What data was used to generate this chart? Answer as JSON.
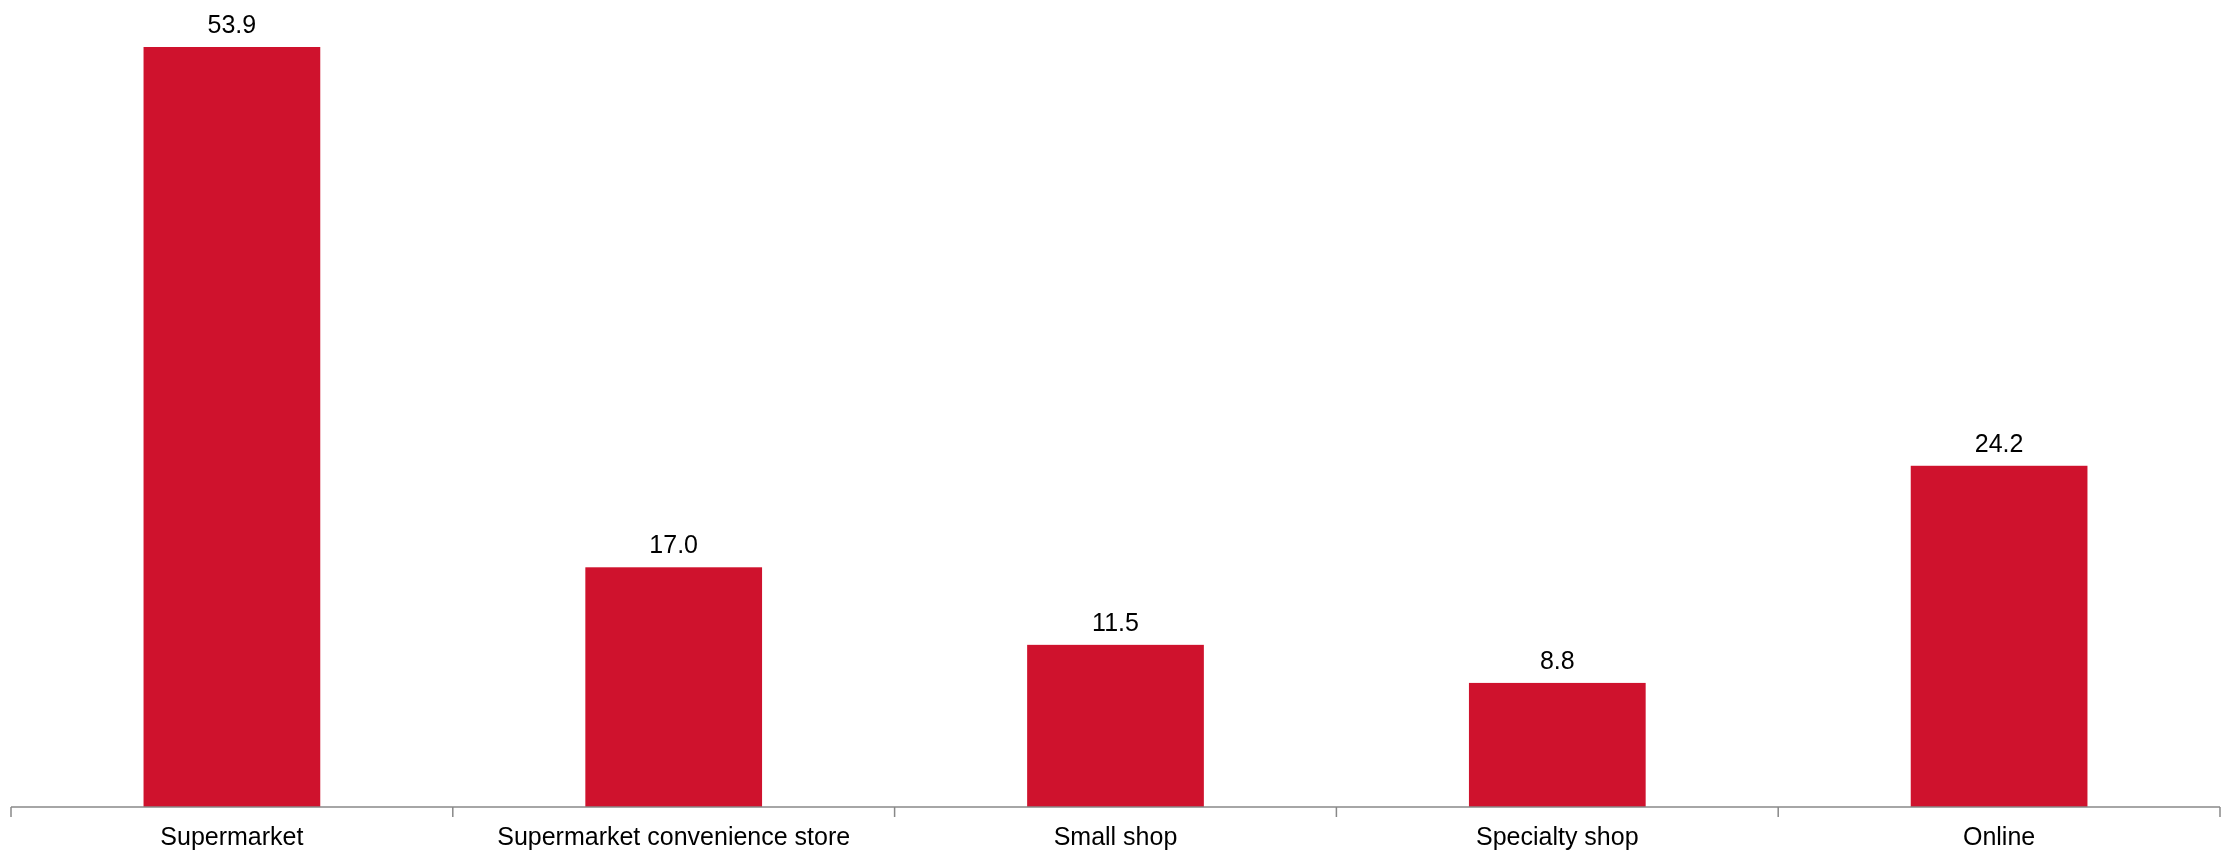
{
  "chart_data": {
    "type": "bar",
    "categories": [
      "Supermarket",
      "Supermarket convenience store",
      "Small shop",
      "Specialty shop",
      "Online"
    ],
    "values": [
      53.9,
      17.0,
      11.5,
      8.8,
      24.2
    ],
    "value_labels": [
      "53.9",
      "17.0",
      "11.5",
      "8.8",
      "24.2"
    ],
    "color": "#cf122d"
  }
}
